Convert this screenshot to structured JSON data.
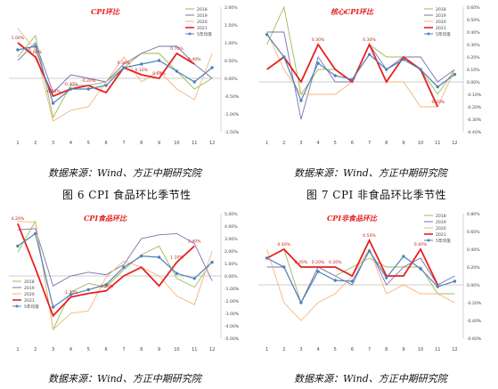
{
  "captions": {
    "source_1": "数据来源：Wind、方正中期研究院",
    "source_2": "数据来源：Wind、方正中期研究院",
    "source_3": "数据来源：Wind、方正中期研究院",
    "source_4": "数据来源：Wind、方正中期研究院",
    "fig6": "图 6   CPI 食品环比季节性",
    "fig7": "图 7   CPI 非食品环比季节性"
  },
  "colors": {
    "s2018": "#9bbb59",
    "s2019": "#7b6fae",
    "s2020": "#f5b47a",
    "s2021": "#e8211d",
    "s5y": "#4f81bd",
    "title": "#e8211d"
  },
  "chart_data": [
    {
      "type": "line",
      "title": "CPI环比",
      "categories": [
        "1",
        "2",
        "3",
        "4",
        "5",
        "6",
        "7",
        "8",
        "9",
        "10",
        "11",
        "12"
      ],
      "ylim": [
        -1.5,
        2.0
      ],
      "yticks": [
        "2.00%",
        "1.50%",
        "1.00%",
        "0.50%",
        "0.00%",
        "-0.50%",
        "-1.00%",
        "-1.50%"
      ],
      "ytick_values": [
        2.0,
        1.5,
        1.0,
        0.5,
        0.0,
        -0.5,
        -1.0,
        -1.5
      ],
      "legend": [
        "2018",
        "2019",
        "2020",
        "2021",
        "5年均值"
      ],
      "legend_position": "top-right",
      "series": [
        {
          "name": "2018",
          "key": "s2018",
          "values": [
            0.6,
            1.2,
            -1.1,
            -0.2,
            -0.2,
            -0.1,
            0.3,
            0.7,
            0.7,
            0.2,
            -0.3,
            0.0
          ]
        },
        {
          "name": "2019",
          "key": "s2019",
          "values": [
            0.5,
            1.0,
            -0.4,
            0.1,
            0.0,
            -0.1,
            0.4,
            0.7,
            0.9,
            0.9,
            0.4,
            0.0
          ]
        },
        {
          "name": "2020",
          "key": "s2020",
          "values": [
            1.4,
            0.8,
            -1.2,
            -0.9,
            -0.8,
            -0.1,
            0.6,
            -0.1,
            0.2,
            -0.3,
            -0.6,
            0.7
          ]
        },
        {
          "name": "2021",
          "key": "s2021",
          "values": [
            1.0,
            0.6,
            -0.5,
            -0.3,
            -0.2,
            -0.4,
            0.3,
            0.1,
            0.0,
            0.7,
            0.4,
            null
          ]
        },
        {
          "name": "5年均值",
          "key": "s5y",
          "values": [
            0.8,
            0.9,
            -0.7,
            -0.3,
            -0.3,
            -0.2,
            0.3,
            0.4,
            0.5,
            0.2,
            -0.1,
            0.3
          ]
        }
      ],
      "labels": [
        {
          "text": "1.00%",
          "i": 0,
          "v": 1.0
        },
        {
          "text": "0.60%",
          "i": 1,
          "v": 0.6
        },
        {
          "text": "-0.50%",
          "i": 2,
          "v": -0.5
        },
        {
          "text": "-0.30%",
          "i": 3,
          "v": -0.3
        },
        {
          "text": "-0.20%",
          "i": 4,
          "v": -0.2
        },
        {
          "text": "0.30%",
          "i": 6,
          "v": 0.3
        },
        {
          "text": "0.10%",
          "i": 7,
          "v": 0.1
        },
        {
          "text": "0.00%",
          "i": 8,
          "v": 0.0
        },
        {
          "text": "0.70%",
          "i": 9,
          "v": 0.7
        },
        {
          "text": "0.40%",
          "i": 10,
          "v": 0.4
        }
      ]
    },
    {
      "type": "line",
      "title": "核心CPI环比",
      "categories": [
        "1",
        "2",
        "3",
        "4",
        "5",
        "6",
        "7",
        "8",
        "9",
        "10",
        "11",
        "12"
      ],
      "ylim": [
        -0.4,
        0.6
      ],
      "yticks": [
        "0.60%",
        "0.50%",
        "0.40%",
        "0.30%",
        "0.20%",
        "0.10%",
        "0.00%",
        "-0.10%",
        "-0.20%",
        "-0.30%",
        "-0.40%"
      ],
      "ytick_values": [
        0.6,
        0.5,
        0.4,
        0.3,
        0.2,
        0.1,
        0.0,
        -0.1,
        -0.2,
        -0.3,
        -0.4
      ],
      "legend": [
        "2018",
        "2019",
        "2020",
        "2021",
        "5年均值"
      ],
      "legend_position": "top-right",
      "series": [
        {
          "name": "2018",
          "key": "s2018",
          "values": [
            0.3,
            0.6,
            -0.1,
            0.1,
            0.1,
            0.0,
            0.3,
            0.2,
            0.2,
            0.1,
            -0.1,
            0.1
          ]
        },
        {
          "name": "2019",
          "key": "s2019",
          "values": [
            0.4,
            0.4,
            -0.3,
            0.2,
            0.0,
            0.0,
            0.3,
            0.1,
            0.2,
            0.2,
            0.0,
            0.1
          ]
        },
        {
          "name": "2020",
          "key": "s2020",
          "values": [
            0.4,
            0.1,
            -0.1,
            -0.1,
            -0.1,
            0.0,
            0.3,
            0.0,
            0.0,
            -0.2,
            -0.2,
            0.1
          ]
        },
        {
          "name": "2021",
          "key": "s2021",
          "values": [
            0.1,
            0.2,
            0.0,
            0.3,
            0.1,
            0.0,
            0.3,
            0.0,
            0.2,
            0.1,
            -0.2,
            null
          ]
        },
        {
          "name": "5年均值",
          "key": "s5y",
          "values": [
            0.38,
            0.2,
            -0.15,
            0.15,
            0.05,
            0.02,
            0.22,
            0.1,
            0.18,
            0.1,
            -0.04,
            0.06
          ]
        }
      ],
      "labels": [
        {
          "text": "0.30%",
          "i": 3,
          "v": 0.3
        },
        {
          "text": "0.30%",
          "i": 6,
          "v": 0.3
        },
        {
          "text": "-0.20%",
          "i": 10,
          "v": -0.2
        }
      ]
    },
    {
      "type": "line",
      "title": "CPI食品环比",
      "categories": [
        "1",
        "2",
        "3",
        "4",
        "5",
        "6",
        "7",
        "8",
        "9",
        "10",
        "11",
        "12"
      ],
      "ylim": [
        -5.0,
        5.0
      ],
      "yticks": [
        "5.00%",
        "4.00%",
        "3.00%",
        "2.00%",
        "1.00%",
        "0.00%",
        "-1.00%",
        "-2.00%",
        "-3.00%",
        "-4.00%",
        "-5.00%"
      ],
      "ytick_values": [
        5,
        4,
        3,
        2,
        1,
        0,
        -1,
        -2,
        -3,
        -4,
        -5
      ],
      "legend": [
        "2018",
        "2019",
        "2020",
        "2021",
        "5年均值"
      ],
      "legend_position": "bottom-left",
      "series": [
        {
          "name": "2018",
          "key": "s2018",
          "values": [
            1.9,
            4.4,
            -4.3,
            -1.3,
            -0.6,
            -0.9,
            0.5,
            1.7,
            2.4,
            -0.2,
            -0.9,
            1.2
          ]
        },
        {
          "name": "2019",
          "key": "s2019",
          "values": [
            3.7,
            3.8,
            -0.8,
            0.0,
            0.3,
            0.1,
            0.9,
            3.0,
            3.3,
            3.4,
            2.6,
            -0.4
          ]
        },
        {
          "name": "2020",
          "key": "s2020",
          "values": [
            4.4,
            4.3,
            -4.3,
            -3.0,
            -2.8,
            -0.1,
            1.2,
            0.7,
            0.0,
            -1.6,
            -2.3,
            2.0
          ]
        },
        {
          "name": "2021",
          "key": "s2021",
          "values": [
            4.2,
            0.6,
            -3.2,
            -1.7,
            -1.4,
            -1.2,
            0.0,
            0.7,
            -0.8,
            1.1,
            2.4,
            null
          ]
        },
        {
          "name": "5年均值",
          "key": "s5y",
          "values": [
            2.4,
            3.4,
            -2.5,
            -1.5,
            -1.1,
            -0.7,
            0.7,
            1.6,
            1.5,
            0.2,
            -0.2,
            1.1
          ]
        }
      ],
      "labels": [
        {
          "text": "4.20%",
          "i": 0,
          "v": 4.2
        },
        {
          "text": "-1.70%",
          "i": 3,
          "v": -1.7
        },
        {
          "text": "-1.20%",
          "i": 5,
          "v": -1.2
        },
        {
          "text": "1.10%",
          "i": 9,
          "v": 1.1
        },
        {
          "text": "2.40%",
          "i": 10,
          "v": 2.4
        }
      ]
    },
    {
      "type": "line",
      "title": "CPI非食品环比",
      "categories": [
        "1",
        "2",
        "3",
        "4",
        "5",
        "6",
        "7",
        "8",
        "9",
        "10",
        "11",
        "12"
      ],
      "ylim": [
        -0.6,
        0.8
      ],
      "yticks": [
        "0.80%",
        "0.60%",
        "0.40%",
        "0.20%",
        "0.00%",
        "-0.20%",
        "-0.40%",
        "-0.60%"
      ],
      "ytick_values": [
        0.8,
        0.6,
        0.4,
        0.2,
        0.0,
        -0.2,
        -0.4,
        -0.6
      ],
      "legend": [
        "2018",
        "2019",
        "2020",
        "2021",
        "5年均值"
      ],
      "legend_position": "top-right",
      "series": [
        {
          "name": "2018",
          "key": "s2018",
          "values": [
            0.3,
            0.4,
            -0.2,
            0.2,
            0.1,
            0.2,
            0.3,
            0.2,
            0.2,
            0.2,
            -0.1,
            -0.1
          ]
        },
        {
          "name": "2019",
          "key": "s2019",
          "values": [
            0.2,
            0.2,
            -0.2,
            0.2,
            0.1,
            0.0,
            0.4,
            0.0,
            0.2,
            0.3,
            0.0,
            0.1
          ]
        },
        {
          "name": "2020",
          "key": "s2020",
          "values": [
            0.4,
            -0.2,
            -0.4,
            -0.2,
            -0.1,
            0.1,
            0.4,
            -0.1,
            0.0,
            -0.1,
            -0.1,
            -0.2
          ]
        },
        {
          "name": "2021",
          "key": "s2021",
          "values": [
            0.3,
            0.4,
            0.2,
            0.2,
            0.2,
            0.1,
            0.5,
            0.1,
            0.1,
            0.4,
            0.0,
            null
          ]
        },
        {
          "name": "5年均值",
          "key": "s5y",
          "values": [
            0.3,
            0.2,
            -0.2,
            0.15,
            0.05,
            0.04,
            0.38,
            0.08,
            0.32,
            0.18,
            -0.02,
            0.04
          ]
        }
      ],
      "labels": [
        {
          "text": "0.40%",
          "i": 1,
          "v": 0.4
        },
        {
          "text": "0.20%",
          "i": 2,
          "v": 0.2
        },
        {
          "text": "0.20%",
          "i": 3,
          "v": 0.2
        },
        {
          "text": "0.20%",
          "i": 4,
          "v": 0.2
        },
        {
          "text": "0.50%",
          "i": 6,
          "v": 0.5
        },
        {
          "text": "0.40%",
          "i": 9,
          "v": 0.4
        }
      ]
    }
  ]
}
